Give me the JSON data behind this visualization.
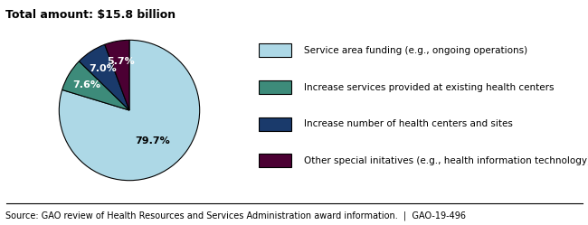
{
  "title": "Total amount: $15.8 billion",
  "slices": [
    79.7,
    7.6,
    7.0,
    5.7
  ],
  "labels": [
    "79.7%",
    "7.6%",
    "7.0%",
    "5.7%"
  ],
  "colors": [
    "#add8e6",
    "#3d8b7a",
    "#1a3a6b",
    "#4b0033"
  ],
  "legend_labels": [
    "Service area funding (e.g., ongoing operations)",
    "Increase services provided at existing health centers",
    "Increase number of health centers and sites",
    "Other special initatives (e.g., health information technology)"
  ],
  "source_text": "Source: GAO review of Health Resources and Services Administration award information.  |  GAO-19-496",
  "label_colors": [
    "#000000",
    "#ffffff",
    "#ffffff",
    "#ffffff"
  ],
  "startangle": 90,
  "background_color": "#ffffff"
}
